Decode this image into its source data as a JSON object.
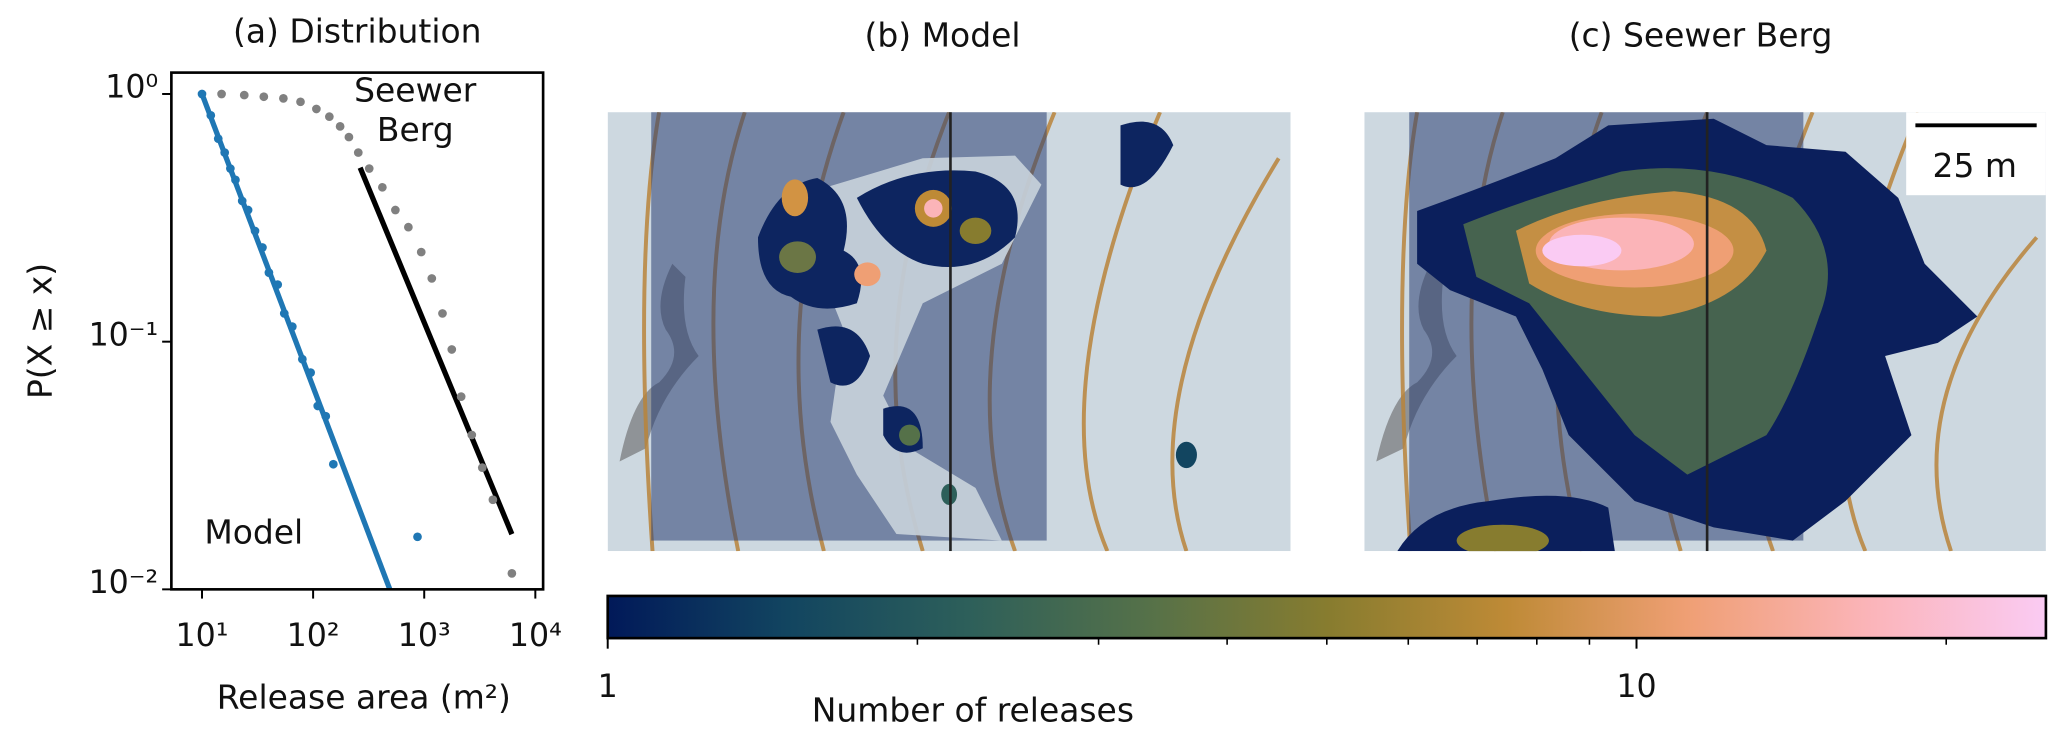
{
  "chart_data": [
    {
      "type": "scatter",
      "title": "(a) Distribution",
      "xlabel": "Release area (m²)",
      "ylabel": "P(X ≥ x)",
      "xscale": "log",
      "yscale": "log",
      "xlim": [
        5.3,
        11750
      ],
      "ylim": [
        0.01,
        1.22
      ],
      "xticks": [
        {
          "value": 10,
          "label": "10¹"
        },
        {
          "value": 100,
          "label": "10²"
        },
        {
          "value": 1000,
          "label": "10³"
        },
        {
          "value": 10000,
          "label": "10⁴"
        }
      ],
      "yticks": [
        {
          "value": 0.01,
          "label": "10⁻²"
        },
        {
          "value": 0.1,
          "label": "10⁻¹"
        },
        {
          "value": 1,
          "label": "10⁰"
        }
      ],
      "series": [
        {
          "name": "Model",
          "color": "#1f77b4",
          "x": [
            10,
            12,
            14,
            16,
            18,
            20,
            23,
            26,
            30,
            35,
            40,
            48,
            55,
            65,
            80,
            95,
            110,
            130,
            152,
            870
          ],
          "values": [
            1,
            0.82,
            0.66,
            0.58,
            0.5,
            0.45,
            0.37,
            0.34,
            0.28,
            0.24,
            0.19,
            0.17,
            0.13,
            0.115,
            0.085,
            0.075,
            0.055,
            0.05,
            0.032,
            0.0163
          ]
        },
        {
          "name": "Seewer Berg",
          "color": "#808080",
          "x": [
            15,
            24,
            36,
            54,
            77,
            107,
            140,
            175,
            210,
            255,
            320,
            420,
            550,
            720,
            940,
            1170,
            1460,
            1770,
            2150,
            2680,
            3330,
            4150,
            6150
          ],
          "values": [
            1,
            0.99,
            0.975,
            0.96,
            0.93,
            0.87,
            0.81,
            0.74,
            0.67,
            0.58,
            0.5,
            0.42,
            0.34,
            0.29,
            0.23,
            0.18,
            0.13,
            0.093,
            0.06,
            0.042,
            0.031,
            0.023,
            0.0116
          ]
        }
      ],
      "fits": [
        {
          "color": "#1f77b4",
          "x": [
            10,
            490
          ],
          "values": [
            1,
            0.01
          ]
        },
        {
          "color": "#000000",
          "x": [
            265,
            6150
          ],
          "values": [
            0.504,
            0.0167
          ]
        }
      ]
    },
    {
      "type": "map",
      "title": "(b) Model"
    },
    {
      "type": "map",
      "title": "(c) Seewer Berg",
      "scale_bar": "25 m"
    },
    {
      "type": "colorbar",
      "label": "Number of releases",
      "scale": "log",
      "lim": [
        1,
        25
      ],
      "ticks": [
        1,
        10
      ],
      "minor_ticks": [
        2,
        3,
        4,
        5,
        6,
        7,
        8,
        9,
        20
      ],
      "colors": [
        "#011959",
        "#124560",
        "#2d5f5a",
        "#557149",
        "#877c2f",
        "#be8a36",
        "#ef9f74",
        "#fbb4b8",
        "#facbf3"
      ]
    }
  ]
}
